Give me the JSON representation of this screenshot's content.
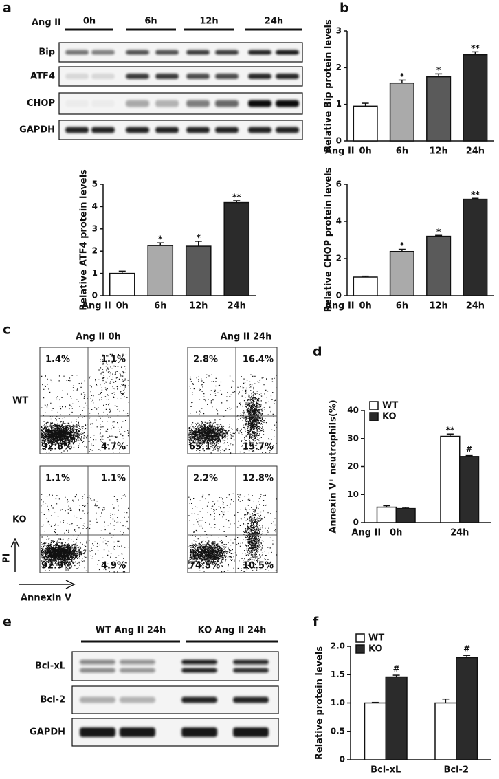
{
  "panel_labels": [
    "a",
    "b",
    "c",
    "d",
    "e",
    "f"
  ],
  "blot_a": {
    "treatment": "Ang II",
    "lanes": [
      "0h",
      "6h",
      "12h",
      "24h"
    ],
    "rows": [
      "Bip",
      "ATF4",
      "CHOP",
      "GAPDH"
    ]
  },
  "flow": {
    "columns": [
      "Ang II 0h",
      "Ang II 24h"
    ],
    "rows": [
      "WT",
      "KO"
    ],
    "quadrants": [
      [
        [
          "1.4%",
          "1.1%",
          "92.8%",
          "4.7%"
        ],
        [
          "2.8%",
          "16.4%",
          "65.1%",
          "15.7%"
        ]
      ],
      [
        [
          "1.1%",
          "1.1%",
          "92.9%",
          "4.9%"
        ],
        [
          "2.2%",
          "12.8%",
          "74.5%",
          "10.5%"
        ]
      ]
    ],
    "y_axis": "PI",
    "x_axis": "Annexin V"
  },
  "blot_e": {
    "groups": [
      "WT Ang II 24h",
      "KO Ang II 24h"
    ],
    "rows": [
      "Bcl-xL",
      "Bcl-2",
      "GAPDH"
    ]
  },
  "chart_data": [
    {
      "type": "bar",
      "ylabel": "Relative ATF4 protein levels",
      "xlabel": "Ang II",
      "categories": [
        "0h",
        "6h",
        "12h",
        "24h"
      ],
      "values": [
        1.0,
        2.25,
        2.22,
        4.18
      ],
      "errors": [
        0.1,
        0.12,
        0.22,
        0.08
      ],
      "colors": [
        "#ffffff",
        "#aaaaaa",
        "#5a5a5a",
        "#2b2b2b"
      ],
      "ylim": [
        0,
        5
      ],
      "yticks": [
        0,
        1,
        2,
        3,
        4,
        5
      ],
      "annotations": [
        {
          "category": "6h",
          "text": "*"
        },
        {
          "category": "12h",
          "text": "*"
        },
        {
          "category": "24h",
          "text": "**"
        }
      ]
    },
    {
      "type": "bar",
      "ylabel": "Relative Bip protein levels",
      "xlabel": "Ang II",
      "categories": [
        "0h",
        "6h",
        "12h",
        "24h"
      ],
      "values": [
        0.95,
        1.58,
        1.75,
        2.35
      ],
      "errors": [
        0.08,
        0.08,
        0.08,
        0.08
      ],
      "colors": [
        "#ffffff",
        "#aaaaaa",
        "#5a5a5a",
        "#2b2b2b"
      ],
      "ylim": [
        0,
        3
      ],
      "yticks": [
        0,
        1,
        2,
        3
      ],
      "annotations": [
        {
          "category": "6h",
          "text": "*"
        },
        {
          "category": "12h",
          "text": "*"
        },
        {
          "category": "24h",
          "text": "**"
        }
      ]
    },
    {
      "type": "bar",
      "ylabel": "Relative CHOP protein levels",
      "xlabel": "Ang II",
      "categories": [
        "0h",
        "6h",
        "12h",
        "24h"
      ],
      "values": [
        1.0,
        2.38,
        3.2,
        5.2
      ],
      "errors": [
        0.05,
        0.12,
        0.05,
        0.05
      ],
      "colors": [
        "#ffffff",
        "#aaaaaa",
        "#5a5a5a",
        "#2b2b2b"
      ],
      "ylim": [
        0,
        6
      ],
      "yticks": [
        0,
        2,
        4,
        6
      ],
      "annotations": [
        {
          "category": "6h",
          "text": "*"
        },
        {
          "category": "12h",
          "text": "*"
        },
        {
          "category": "24h",
          "text": "**"
        }
      ]
    },
    {
      "type": "grouped-bar",
      "ylabel": "Annexin V⁺ neutrophils(%)",
      "xlabel": "Ang II",
      "categories": [
        "0h",
        "24h"
      ],
      "series": [
        {
          "name": "WT",
          "color": "#ffffff",
          "values": [
            5.5,
            30.8
          ],
          "errors": [
            0.5,
            0.8
          ]
        },
        {
          "name": "KO",
          "color": "#2b2b2b",
          "values": [
            5.0,
            23.6
          ],
          "errors": [
            0.4,
            0.3
          ]
        }
      ],
      "ylim": [
        0,
        40
      ],
      "yticks": [
        0,
        10,
        20,
        30,
        40
      ],
      "legend": "upper-left",
      "annotations": [
        {
          "series": "WT",
          "category": "24h",
          "text": "**"
        },
        {
          "series": "KO",
          "category": "24h",
          "text": "#"
        }
      ]
    },
    {
      "type": "grouped-bar",
      "ylabel": "Relative protein levels",
      "categories": [
        "Bcl-xL",
        "Bcl-2"
      ],
      "series": [
        {
          "name": "WT",
          "color": "#ffffff",
          "values": [
            1.0,
            1.0
          ],
          "errors": [
            0.01,
            0.07
          ]
        },
        {
          "name": "KO",
          "color": "#2b2b2b",
          "values": [
            1.46,
            1.8
          ],
          "errors": [
            0.03,
            0.04
          ]
        }
      ],
      "ylim": [
        0,
        2
      ],
      "yticks": [
        0,
        0.5,
        {
          "value": 1,
          "label": "1.0"
        },
        1.5,
        {
          "value": 2,
          "label": "2.0"
        }
      ],
      "legend": "upper-left",
      "annotations": [
        {
          "series": "KO",
          "category": "Bcl-xL",
          "text": "#"
        },
        {
          "series": "KO",
          "category": "Bcl-2",
          "text": "#"
        }
      ]
    }
  ]
}
